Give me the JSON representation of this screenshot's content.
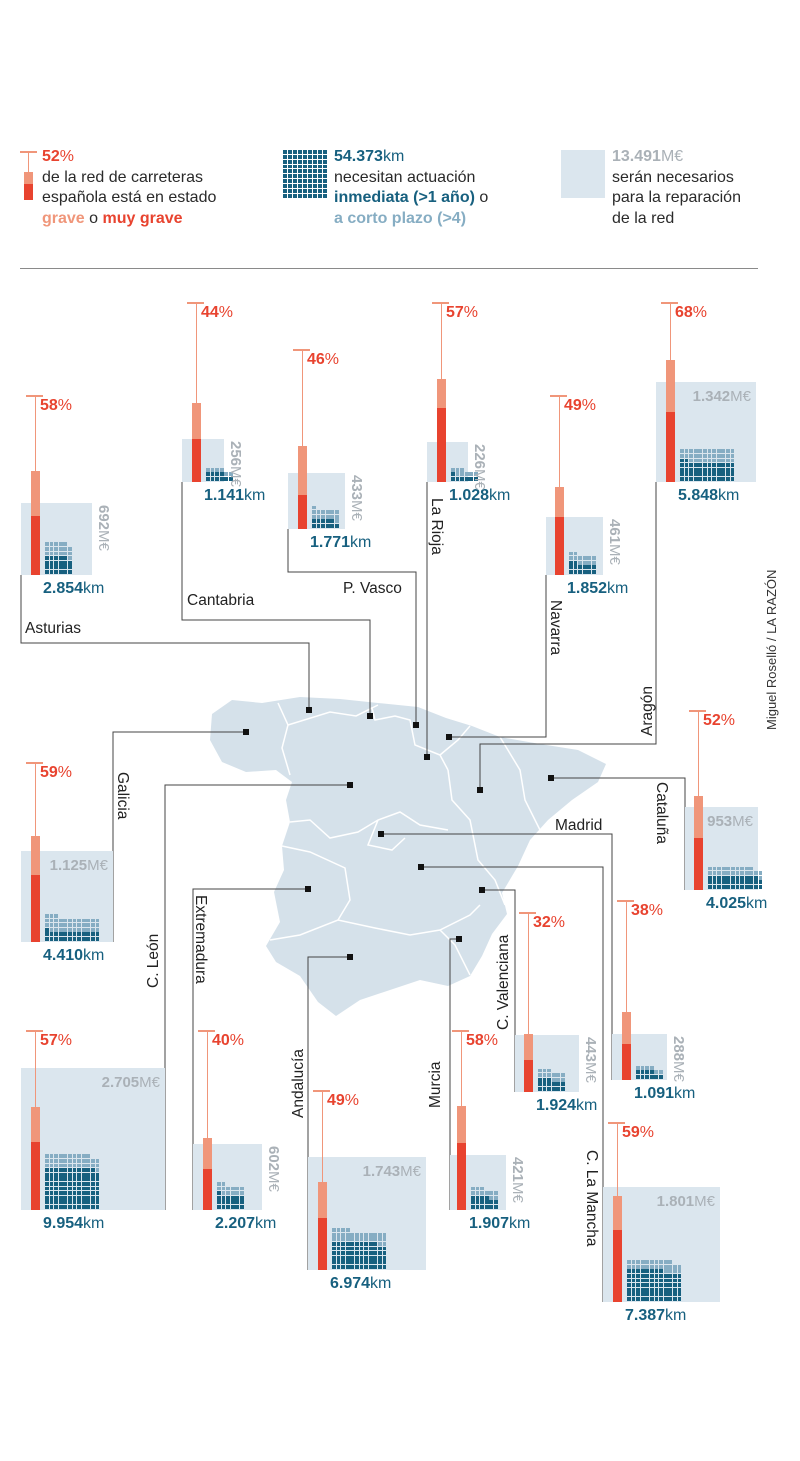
{
  "legend": {
    "grave_pct": {
      "value": "52",
      "unit": "%",
      "line1": "de la red de carreteras",
      "line2": "española está en estado",
      "grave": "grave",
      "o": " o ",
      "muy_grave": "muy grave"
    },
    "km": {
      "value": "54.373",
      "unit": "km",
      "line1": "necesitan actuación",
      "inmediata": "inmediata (>1 año)",
      "o": " o",
      "corto": "a corto plazo (>4)"
    },
    "eur": {
      "value": "13.491",
      "unit": "M€",
      "line1": "serán necesarios",
      "line2": "para la reparación",
      "line3": "de la red"
    }
  },
  "credit": "Miguel Roselló / LA RAZÓN",
  "units": {
    "pct": "%",
    "eur": "M€",
    "km": "km"
  },
  "colors": {
    "grave": "#f0967a",
    "muy_grave": "#e8432f",
    "inmediata": "#17607f",
    "corto_plazo": "#86adc3",
    "cost_box": "#dbe6ee",
    "map": "#d5e1ea"
  },
  "chart_data": {
    "type": "map-infographic",
    "fields": [
      "pct_grave_o_muy_grave",
      "muy_grave_pct_est",
      "cost_meur",
      "km_actuacion",
      "inmediata_share_est"
    ],
    "regions": [
      {
        "name": "Asturias",
        "pct": "58",
        "muy_grave": 33,
        "eur": "692",
        "km": "2.854",
        "inmediata_share": 0.55
      },
      {
        "name": "Cantabria",
        "pct": "44",
        "muy_grave": 24,
        "eur": "256",
        "km": "1.141",
        "inmediata_share": 0.65
      },
      {
        "name": "P. Vasco",
        "pct": "46",
        "muy_grave": 19,
        "eur": "433",
        "km": "1.771",
        "inmediata_share": 0.45
      },
      {
        "name": "La Rioja",
        "pct": "57",
        "muy_grave": 41,
        "eur": "226",
        "km": "1.028",
        "inmediata_share": 0.45
      },
      {
        "name": "Navarra",
        "pct": "49",
        "muy_grave": 32,
        "eur": "461",
        "km": "1.852",
        "inmediata_share": 0.55
      },
      {
        "name": "Aragón",
        "pct": "68",
        "muy_grave": 39,
        "eur": "1.342",
        "km": "5.848",
        "inmediata_share": 0.6
      },
      {
        "name": "Galicia",
        "pct": "59",
        "muy_grave": 37,
        "eur": "1.125",
        "km": "4.410",
        "inmediata_share": 0.4
      },
      {
        "name": "Cataluña",
        "pct": "52",
        "muy_grave": 29,
        "eur": "953",
        "km": "4.025",
        "inmediata_share": 0.6
      },
      {
        "name": "C. León",
        "pct": "57",
        "muy_grave": 38,
        "eur": "2.705",
        "km": "9.954",
        "inmediata_share": 0.75
      },
      {
        "name": "Extremadura",
        "pct": "40",
        "muy_grave": 23,
        "eur": "602",
        "km": "2.207",
        "inmediata_share": 0.6
      },
      {
        "name": "Andalucía",
        "pct": "49",
        "muy_grave": 29,
        "eur": "1.743",
        "km": "6.974",
        "inmediata_share": 0.7
      },
      {
        "name": "Murcia",
        "pct": "58",
        "muy_grave": 37,
        "eur": "421",
        "km": "1.907",
        "inmediata_share": 0.6
      },
      {
        "name": "C. Valenciana",
        "pct": "32",
        "muy_grave": 18,
        "eur": "443",
        "km": "1.924",
        "inmediata_share": 0.55
      },
      {
        "name": "Madrid",
        "pct": "38",
        "muy_grave": 20,
        "eur": "288",
        "km": "1.091",
        "inmediata_share": 0.6
      },
      {
        "name": "C. La Mancha",
        "pct": "59",
        "muy_grave": 40,
        "eur": "1.801",
        "km": "7.387",
        "inmediata_share": 0.75
      }
    ]
  }
}
